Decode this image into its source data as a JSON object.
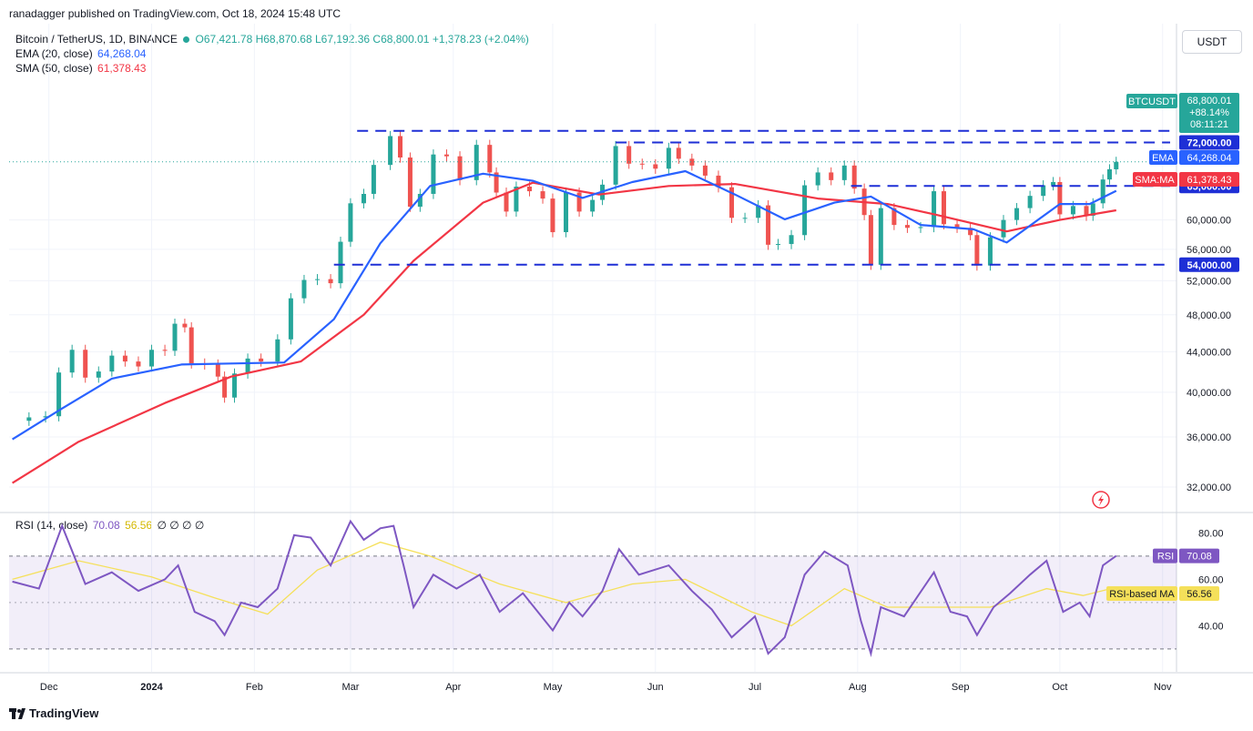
{
  "header": {
    "published": "ranadagger published on TradingView.com, Oct 18, 2024 15:48 UTC"
  },
  "legend": {
    "symbol": "Bitcoin / TetherUS, 1D, BINANCE",
    "o": "O67,421.78",
    "h": "H68,870.68",
    "l": "L67,192.36",
    "c": "C68,800.01",
    "chg": "+1,378.23 (+2.04%)",
    "ema_name": "EMA (20, close)",
    "ema_val": "64,268.04",
    "sma_name": "SMA (50, close)",
    "sma_val": "61,378.43",
    "rsi_name": "RSI (14, close)",
    "rsi_val": "70.08",
    "rsi_ma_val": "56.56",
    "rsi_extra": "∅ ∅ ∅ ∅"
  },
  "unit_button": "USDT",
  "footer": {
    "brand": "TradingView"
  },
  "colors": {
    "up": "#26a69a",
    "down": "#ef5350",
    "ema": "#2962ff",
    "sma": "#f23645",
    "rsi": "#7e57c2",
    "rsi_ma": "#f5e05a",
    "level": "#1e2fd6"
  },
  "chart_data": [
    {
      "type": "candlestick",
      "title": "Bitcoin / TetherUS, 1D, BINANCE",
      "ylim": [
        30000,
        77000
      ],
      "price_axis_ticks": [
        "32,000.00",
        "36,000.00",
        "40,000.00",
        "44,000.00",
        "48,000.00",
        "52,000.00",
        "56,000.00",
        "60,000.00"
      ],
      "x_ticks": [
        "Dec",
        "2024",
        "Feb",
        "Mar",
        "Apr",
        "May",
        "Jun",
        "Jul",
        "Aug",
        "Sep",
        "Oct",
        "Nov"
      ],
      "levels": [
        {
          "price": 74000,
          "from": "2024-03-03"
        },
        {
          "price": 72000,
          "from": "2024-05-20",
          "label": "72,000.00"
        },
        {
          "price": 65000,
          "from": "2024-07-30",
          "label": "65,000.00"
        },
        {
          "price": 54000,
          "from": "2024-02-25",
          "label": "54,000.00"
        }
      ],
      "price_labels": {
        "symbol": "BTCUSDT",
        "last": "68,800.01",
        "change": "+88.14%",
        "countdown": "08:11:21",
        "ema_tag": "EMA",
        "ema": "64,268.04",
        "sma_tag": "SMA:MA",
        "sma": "61,378.43"
      },
      "close_series": [
        [
          "2023-11-20",
          37400
        ],
        [
          "2023-11-25",
          37700
        ],
        [
          "2023-11-30",
          37800
        ],
        [
          "2023-12-04",
          41900
        ],
        [
          "2023-12-08",
          44200
        ],
        [
          "2023-12-12",
          41400
        ],
        [
          "2023-12-16",
          42000
        ],
        [
          "2023-12-20",
          43600
        ],
        [
          "2023-12-24",
          43000
        ],
        [
          "2023-12-28",
          42500
        ],
        [
          "2024-01-01",
          44200
        ],
        [
          "2024-01-05",
          44100
        ],
        [
          "2024-01-08",
          47000
        ],
        [
          "2024-01-11",
          46600
        ],
        [
          "2024-01-13",
          42800
        ],
        [
          "2024-01-17",
          42700
        ],
        [
          "2024-01-21",
          41500
        ],
        [
          "2024-01-23",
          39500
        ],
        [
          "2024-01-26",
          41800
        ],
        [
          "2024-01-30",
          43300
        ],
        [
          "2024-02-03",
          43000
        ],
        [
          "2024-02-08",
          45300
        ],
        [
          "2024-02-12",
          49900
        ],
        [
          "2024-02-16",
          52100
        ],
        [
          "2024-02-20",
          52200
        ],
        [
          "2024-02-24",
          51700
        ],
        [
          "2024-02-27",
          57000
        ],
        [
          "2024-03-01",
          62400
        ],
        [
          "2024-03-05",
          63800
        ],
        [
          "2024-03-08",
          68300
        ],
        [
          "2024-03-13",
          73100
        ],
        [
          "2024-03-16",
          69500
        ],
        [
          "2024-03-19",
          61900
        ],
        [
          "2024-03-22",
          63800
        ],
        [
          "2024-03-26",
          70000
        ],
        [
          "2024-03-30",
          69700
        ],
        [
          "2024-04-03",
          65900
        ],
        [
          "2024-04-08",
          71600
        ],
        [
          "2024-04-12",
          67100
        ],
        [
          "2024-04-14",
          64000
        ],
        [
          "2024-04-17",
          61200
        ],
        [
          "2024-04-20",
          64900
        ],
        [
          "2024-04-24",
          64200
        ],
        [
          "2024-04-28",
          63100
        ],
        [
          "2024-05-01",
          58300
        ],
        [
          "2024-05-05",
          64000
        ],
        [
          "2024-05-09",
          61200
        ],
        [
          "2024-05-13",
          62900
        ],
        [
          "2024-05-16",
          65200
        ],
        [
          "2024-05-20",
          71400
        ],
        [
          "2024-05-24",
          68500
        ],
        [
          "2024-05-28",
          68400
        ],
        [
          "2024-06-01",
          67700
        ],
        [
          "2024-06-05",
          71100
        ],
        [
          "2024-06-08",
          69300
        ],
        [
          "2024-06-12",
          68200
        ],
        [
          "2024-06-16",
          66600
        ],
        [
          "2024-06-20",
          64800
        ],
        [
          "2024-06-24",
          60300
        ],
        [
          "2024-06-28",
          60300
        ],
        [
          "2024-07-02",
          62100
        ],
        [
          "2024-07-05",
          56600
        ],
        [
          "2024-07-08",
          56700
        ],
        [
          "2024-07-12",
          57900
        ],
        [
          "2024-07-16",
          65100
        ],
        [
          "2024-07-20",
          67100
        ],
        [
          "2024-07-24",
          65900
        ],
        [
          "2024-07-28",
          68200
        ],
        [
          "2024-07-31",
          64600
        ],
        [
          "2024-08-03",
          60700
        ],
        [
          "2024-08-05",
          54000
        ],
        [
          "2024-08-08",
          61700
        ],
        [
          "2024-08-12",
          59300
        ],
        [
          "2024-08-16",
          58900
        ],
        [
          "2024-08-20",
          59000
        ],
        [
          "2024-08-24",
          64200
        ],
        [
          "2024-08-27",
          59400
        ],
        [
          "2024-08-31",
          58900
        ],
        [
          "2024-09-04",
          57900
        ],
        [
          "2024-09-06",
          53900
        ],
        [
          "2024-09-10",
          57600
        ],
        [
          "2024-09-14",
          60000
        ],
        [
          "2024-09-18",
          61700
        ],
        [
          "2024-09-22",
          63500
        ],
        [
          "2024-09-26",
          65100
        ],
        [
          "2024-09-29",
          65600
        ],
        [
          "2024-10-01",
          60800
        ],
        [
          "2024-10-05",
          62000
        ],
        [
          "2024-10-09",
          60600
        ],
        [
          "2024-10-11",
          62400
        ],
        [
          "2024-10-14",
          66000
        ],
        [
          "2024-10-16",
          67600
        ],
        [
          "2024-10-18",
          68800
        ]
      ],
      "ema20_series": [
        [
          "2023-11-20",
          35800
        ],
        [
          "2023-12-05",
          38500
        ],
        [
          "2023-12-20",
          41300
        ],
        [
          "2024-01-10",
          42700
        ],
        [
          "2024-01-25",
          42800
        ],
        [
          "2024-02-10",
          42900
        ],
        [
          "2024-02-25",
          47500
        ],
        [
          "2024-03-10",
          56800
        ],
        [
          "2024-03-25",
          65000
        ],
        [
          "2024-04-10",
          66900
        ],
        [
          "2024-04-25",
          65800
        ],
        [
          "2024-05-10",
          63200
        ],
        [
          "2024-05-25",
          65600
        ],
        [
          "2024-06-10",
          67300
        ],
        [
          "2024-06-25",
          63700
        ],
        [
          "2024-07-10",
          60100
        ],
        [
          "2024-07-25",
          62500
        ],
        [
          "2024-08-05",
          63400
        ],
        [
          "2024-08-20",
          59300
        ],
        [
          "2024-09-05",
          58700
        ],
        [
          "2024-09-15",
          56900
        ],
        [
          "2024-10-01",
          62300
        ],
        [
          "2024-10-10",
          62300
        ],
        [
          "2024-10-18",
          64268
        ]
      ],
      "sma50_series": [
        [
          "2023-11-20",
          32300
        ],
        [
          "2023-12-10",
          35600
        ],
        [
          "2024-01-05",
          39000
        ],
        [
          "2024-01-25",
          41500
        ],
        [
          "2024-02-15",
          43000
        ],
        [
          "2024-03-05",
          48000
        ],
        [
          "2024-03-20",
          54500
        ],
        [
          "2024-04-10",
          62500
        ],
        [
          "2024-04-25",
          65500
        ],
        [
          "2024-05-15",
          63700
        ],
        [
          "2024-06-05",
          65000
        ],
        [
          "2024-06-25",
          65300
        ],
        [
          "2024-07-20",
          63100
        ],
        [
          "2024-08-10",
          62300
        ],
        [
          "2024-08-25",
          60700
        ],
        [
          "2024-09-15",
          58400
        ],
        [
          "2024-10-01",
          60000
        ],
        [
          "2024-10-18",
          61378
        ]
      ]
    },
    {
      "type": "line",
      "title": "RSI (14, close)",
      "ylim": [
        20,
        90
      ],
      "y_ticks": [
        "80.00",
        "60.00",
        "40.00"
      ],
      "bands": [
        70,
        30
      ],
      "labels": {
        "rsi_tag": "RSI",
        "rsi": "70.08",
        "ma_tag": "RSI-based MA",
        "ma": "56.56"
      },
      "rsi_series": [
        [
          "2023-11-20",
          59
        ],
        [
          "2023-11-28",
          56
        ],
        [
          "2023-12-05",
          83
        ],
        [
          "2023-12-12",
          58
        ],
        [
          "2023-12-20",
          63
        ],
        [
          "2023-12-28",
          55
        ],
        [
          "2024-01-05",
          60
        ],
        [
          "2024-01-09",
          66
        ],
        [
          "2024-01-14",
          46
        ],
        [
          "2024-01-20",
          42
        ],
        [
          "2024-01-23",
          36
        ],
        [
          "2024-01-28",
          50
        ],
        [
          "2024-02-02",
          48
        ],
        [
          "2024-02-08",
          56
        ],
        [
          "2024-02-13",
          79
        ],
        [
          "2024-02-18",
          78
        ],
        [
          "2024-02-24",
          66
        ],
        [
          "2024-03-01",
          85
        ],
        [
          "2024-03-05",
          77
        ],
        [
          "2024-03-10",
          82
        ],
        [
          "2024-03-14",
          83
        ],
        [
          "2024-03-17",
          66
        ],
        [
          "2024-03-20",
          48
        ],
        [
          "2024-03-26",
          62
        ],
        [
          "2024-04-02",
          56
        ],
        [
          "2024-04-09",
          62
        ],
        [
          "2024-04-15",
          46
        ],
        [
          "2024-04-22",
          54
        ],
        [
          "2024-05-01",
          38
        ],
        [
          "2024-05-06",
          50
        ],
        [
          "2024-05-10",
          44
        ],
        [
          "2024-05-16",
          55
        ],
        [
          "2024-05-21",
          73
        ],
        [
          "2024-05-27",
          62
        ],
        [
          "2024-06-05",
          66
        ],
        [
          "2024-06-12",
          55
        ],
        [
          "2024-06-18",
          47
        ],
        [
          "2024-06-24",
          35
        ],
        [
          "2024-07-01",
          44
        ],
        [
          "2024-07-05",
          28
        ],
        [
          "2024-07-10",
          35
        ],
        [
          "2024-07-16",
          62
        ],
        [
          "2024-07-22",
          72
        ],
        [
          "2024-07-29",
          66
        ],
        [
          "2024-08-02",
          42
        ],
        [
          "2024-08-05",
          28
        ],
        [
          "2024-08-08",
          48
        ],
        [
          "2024-08-15",
          44
        ],
        [
          "2024-08-24",
          63
        ],
        [
          "2024-08-29",
          46
        ],
        [
          "2024-09-03",
          44
        ],
        [
          "2024-09-06",
          36
        ],
        [
          "2024-09-11",
          48
        ],
        [
          "2024-09-16",
          54
        ],
        [
          "2024-09-22",
          62
        ],
        [
          "2024-09-27",
          68
        ],
        [
          "2024-10-02",
          46
        ],
        [
          "2024-10-07",
          50
        ],
        [
          "2024-10-10",
          44
        ],
        [
          "2024-10-14",
          66
        ],
        [
          "2024-10-18",
          70.08
        ]
      ],
      "rsi_ma_series": [
        [
          "2023-11-20",
          60
        ],
        [
          "2023-12-10",
          68
        ],
        [
          "2024-01-01",
          61
        ],
        [
          "2024-01-20",
          52
        ],
        [
          "2024-02-05",
          45
        ],
        [
          "2024-02-20",
          64
        ],
        [
          "2024-03-10",
          76
        ],
        [
          "2024-03-25",
          70
        ],
        [
          "2024-04-15",
          58
        ],
        [
          "2024-05-05",
          50
        ],
        [
          "2024-05-25",
          58
        ],
        [
          "2024-06-10",
          60
        ],
        [
          "2024-06-30",
          46
        ],
        [
          "2024-07-12",
          40
        ],
        [
          "2024-07-28",
          56
        ],
        [
          "2024-08-10",
          48
        ],
        [
          "2024-08-25",
          48
        ],
        [
          "2024-09-10",
          48
        ],
        [
          "2024-09-27",
          56
        ],
        [
          "2024-10-08",
          53
        ],
        [
          "2024-10-18",
          56.56
        ]
      ]
    }
  ]
}
